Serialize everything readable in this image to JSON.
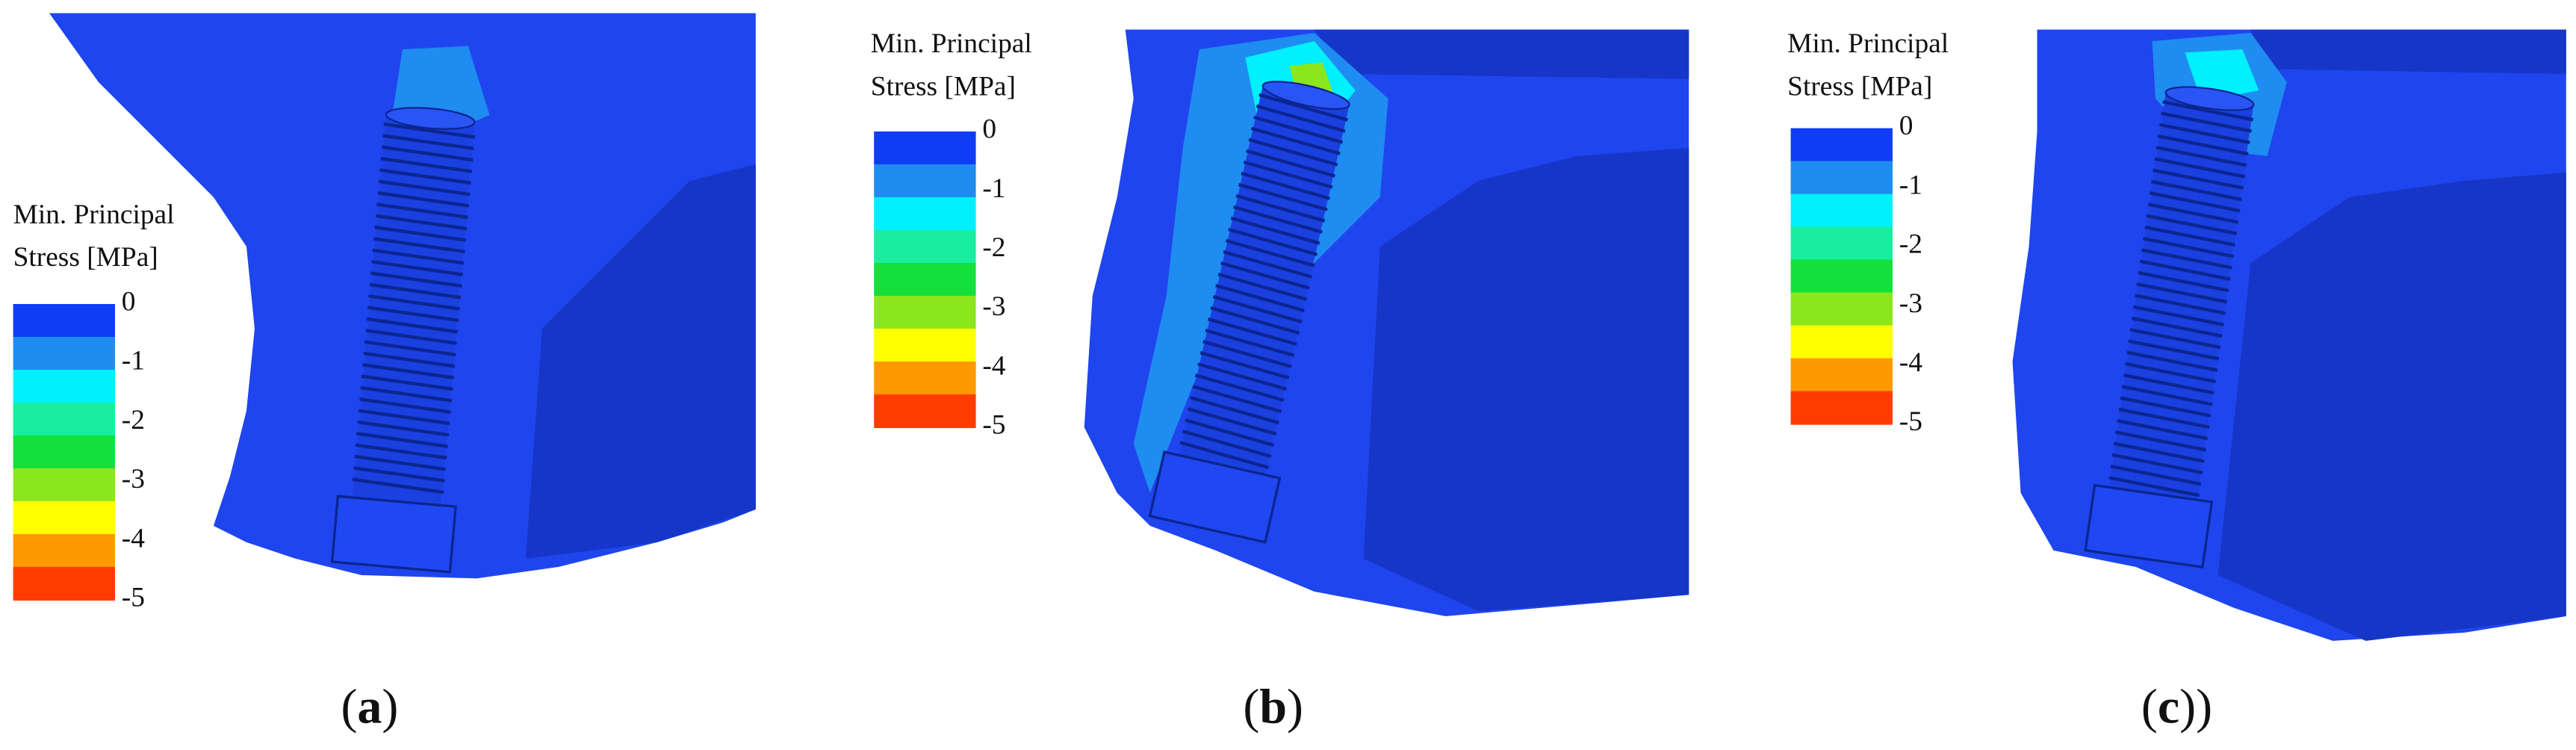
{
  "panels": [
    {
      "label": "(a)",
      "legend": {
        "title": [
          "Min. Principal",
          "Stress [MPa]"
        ],
        "ticks": [
          "0",
          "-1",
          "-2",
          "-3",
          "-4",
          "-5"
        ],
        "colors": [
          "#0f3cf5",
          "#1e8cf0",
          "#00f0ff",
          "#19eea0",
          "#14e03c",
          "#8ce61e",
          "#ffff00",
          "#ff9900",
          "#ff3c00"
        ]
      }
    },
    {
      "label": "(b)",
      "legend": {
        "title": [
          "Min. Principal",
          "Stress [MPa]"
        ],
        "ticks": [
          "0",
          "-1",
          "-2",
          "-3",
          "-4",
          "-5"
        ],
        "colors": [
          "#0f3cf5",
          "#1e8cf0",
          "#00f0ff",
          "#19eea0",
          "#14e03c",
          "#8ce61e",
          "#ffff00",
          "#ff9900",
          "#ff3c00"
        ]
      }
    },
    {
      "label": "(c))",
      "legend": {
        "title": [
          "Min. Principal",
          "Stress [MPa]"
        ],
        "ticks": [
          "0",
          "-1",
          "-2",
          "-3",
          "-4",
          "-5"
        ],
        "colors": [
          "#0f3cf5",
          "#1e8cf0",
          "#00f0ff",
          "#19eea0",
          "#14e03c",
          "#8ce61e",
          "#ffff00",
          "#ff9900",
          "#ff3c00"
        ]
      }
    }
  ]
}
